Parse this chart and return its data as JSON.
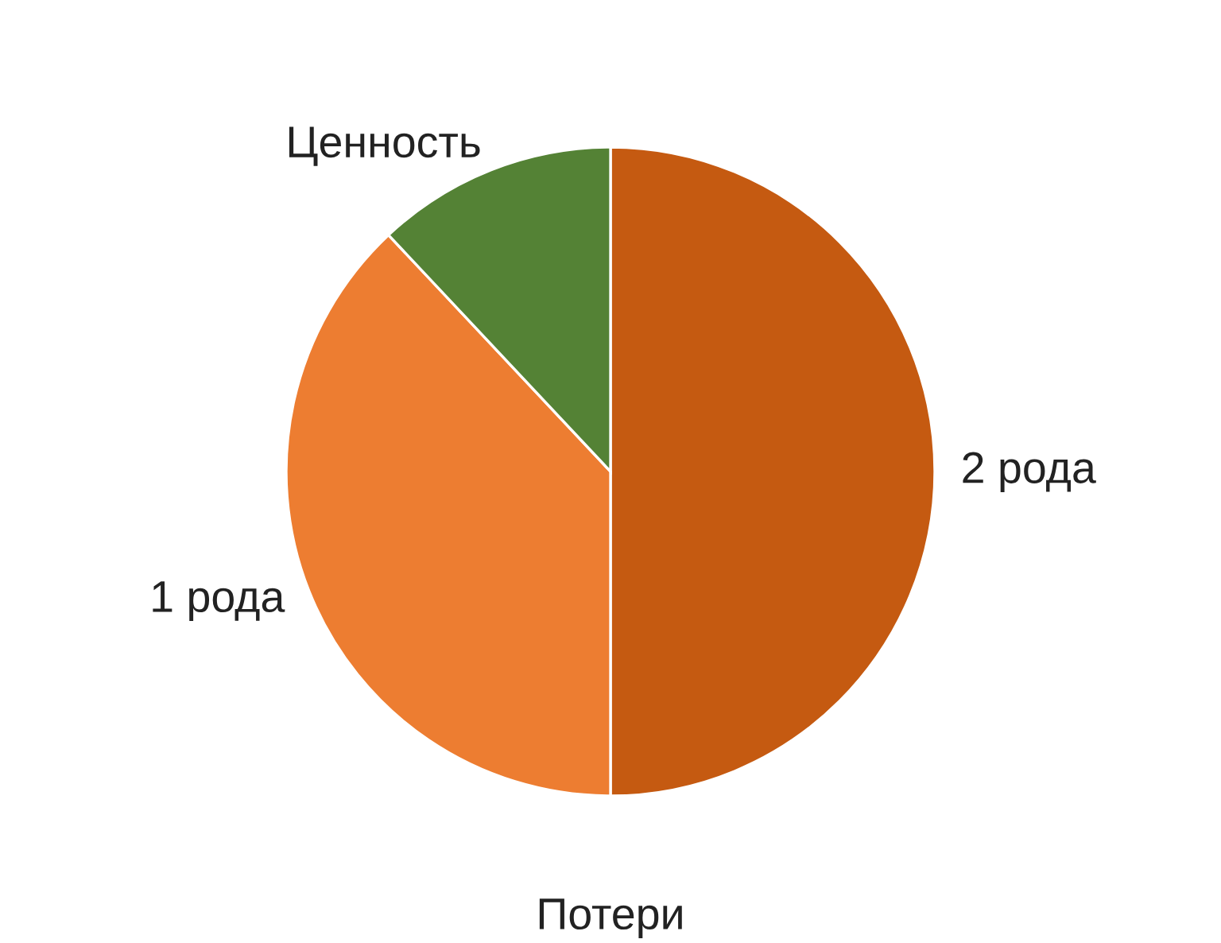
{
  "chart_data": {
    "type": "pie",
    "categories": [
      "2 рода",
      "1 рода",
      "Ценность"
    ],
    "values": [
      50,
      38,
      12
    ],
    "colors": [
      "#c55a11",
      "#ed7d31",
      "#548235"
    ],
    "annotations": [
      "Потери"
    ]
  }
}
